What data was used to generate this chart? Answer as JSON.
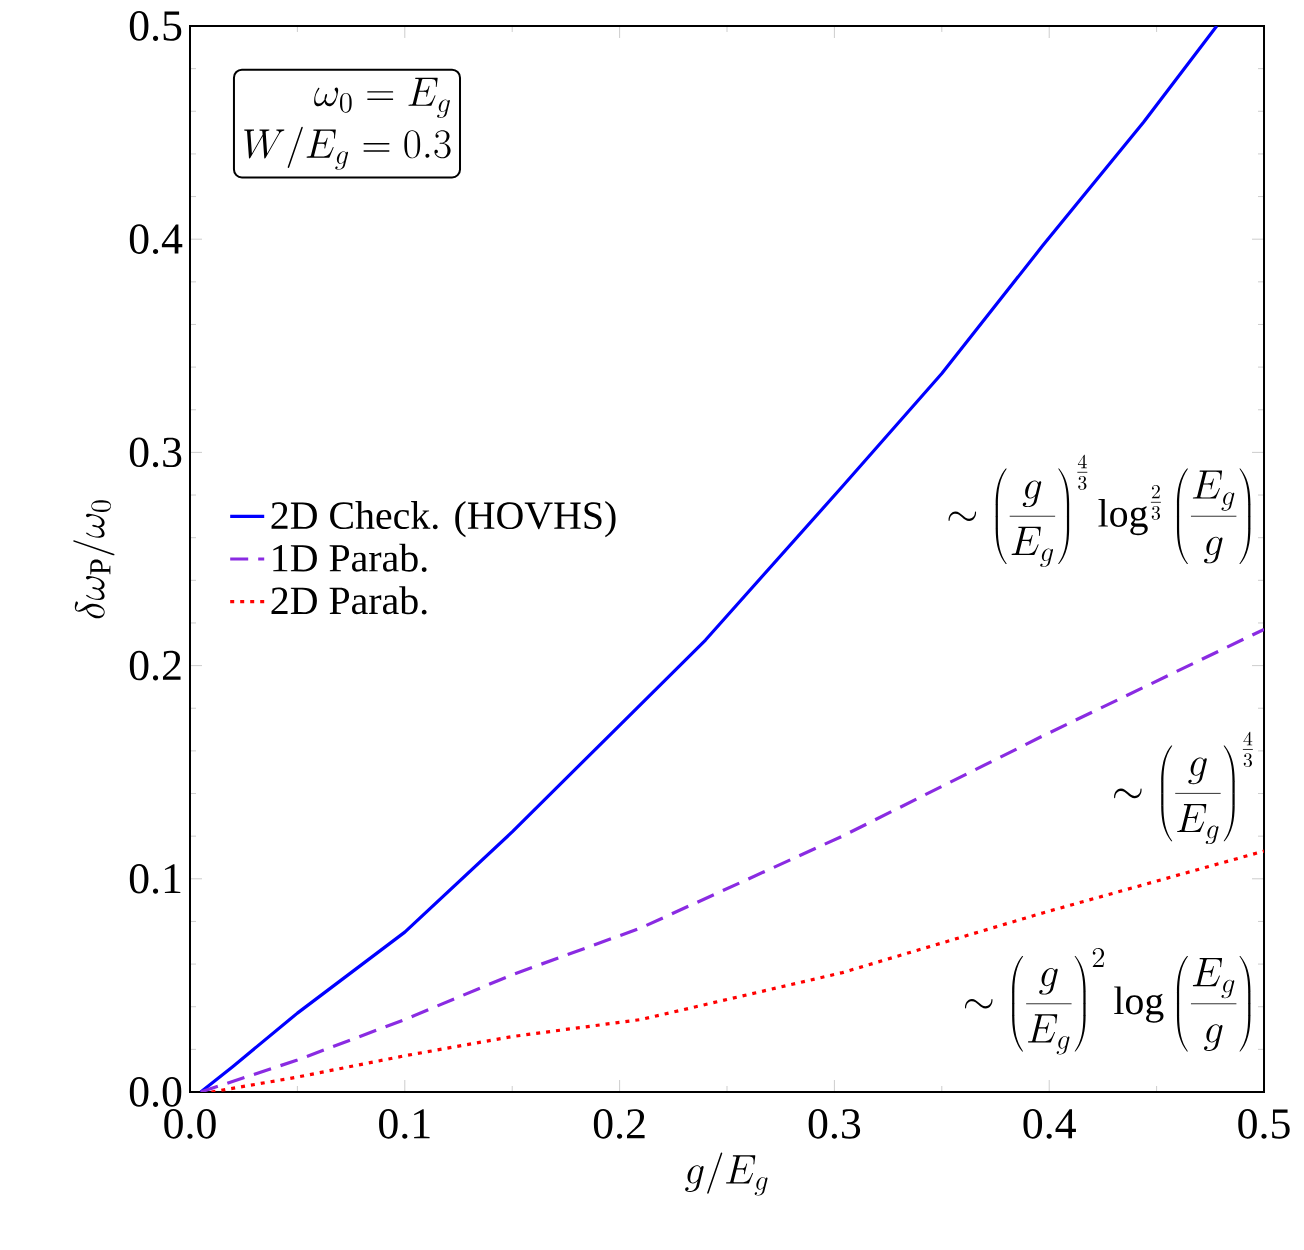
{
  "chart_data": {
    "type": "line",
    "xlabel": "g/E_g",
    "ylabel": "\\delta\\omega_{\\mathrm{P}}/\\omega_0",
    "xlim": [
      0,
      0.5
    ],
    "ylim": [
      0,
      0.5
    ],
    "xticks": [
      {
        "value": 0,
        "label": "0.0"
      },
      0.1,
      0.2,
      0.3,
      0.4,
      0.5
    ],
    "yticks": [
      {
        "value": 0,
        "label": "0.0"
      },
      0.1,
      0.2,
      0.3,
      0.4,
      0.5
    ],
    "legend": "left",
    "grid": false,
    "marker": "none",
    "series": [
      {
        "name": "2D Check. (HOVHS)",
        "color": "#0000ff",
        "line_style": "solid",
        "x": [
          0.005,
          0.02,
          0.05,
          0.1,
          0.15,
          0.2,
          0.24,
          0.3037,
          0.35,
          0.397,
          0.444,
          0.478
        ],
        "values": [
          0,
          0.012,
          0.037,
          0.075,
          0.122,
          0.172,
          0.212,
          0.284,
          0.337,
          0.397,
          0.455,
          0.5
        ]
      },
      {
        "name": "1D Parab.",
        "color": "#8a2be2",
        "line_style": "dashed",
        "x": [
          0.005,
          0.05,
          0.1,
          0.15,
          0.21,
          0.3037,
          0.397,
          0.5
        ],
        "values": [
          0,
          0.015,
          0.034,
          0.055,
          0.077,
          0.12,
          0.167,
          0.217
        ]
      },
      {
        "name": "2D Parab.",
        "color": "#ff0000",
        "line_style": "dotted",
        "x": [
          0.01,
          0.05,
          0.1,
          0.15,
          0.21,
          0.3037,
          0.397,
          0.5
        ],
        "values": [
          0,
          0.007,
          0.017,
          0.026,
          0.034,
          0.056,
          0.084,
          0.113
        ]
      }
    ],
    "annotations": [
      "\\omega_0 = E_g",
      "W/E_g = 0.3",
      "\\sim\\left(\\frac{g}{E_g}\\right)^{\\frac{4}{3}}\\log^{\\frac{2}{3}}\\left(\\frac{E_g}{g}\\right)",
      "\\sim\\left(\\frac{g}{E_g}\\right)^{\\frac{4}{3}}",
      "\\sim\\left(\\frac{g}{E_g}\\right)^{2}\\log\\left(\\frac{E_g}{g}\\right)"
    ]
  }
}
